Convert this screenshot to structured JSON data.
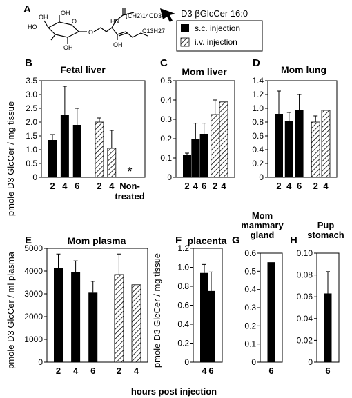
{
  "colors": {
    "scBar": "#000000",
    "ivHatch": "#000000",
    "frame": "#000000"
  },
  "header": {
    "panel_letter": "A",
    "compound_name": "D3 βGlcCer 16:0",
    "structure_labels": {
      "oh1": "OH",
      "ho": "HO",
      "oh2": "OH",
      "oh3": "OH",
      "nh": "HN",
      "o": "O",
      "chain": "(CH2)14CD3",
      "c13": "C13H27",
      "ring_o": "O"
    }
  },
  "legend": [
    {
      "key": "sc",
      "label": "s.c. injection",
      "style": "solid"
    },
    {
      "key": "iv",
      "label": "i.v. injection",
      "style": "hatched"
    }
  ],
  "axis_text": {
    "ylabel_top": "pmole D3 GlcCer / mg tissue",
    "ylabel_E": "pmole D3 GlcCer / ml plasma",
    "ylabel_F": "pmole D3 GlcCer / mg tissue",
    "xlabel_bottom": "hours post injection",
    "non_treated": "Non-\ntreated",
    "asterisk": "*"
  },
  "chart_data": [
    {
      "panel": "B",
      "title": "Fetal liver",
      "type": "bar",
      "ylim": [
        0,
        3.5
      ],
      "yticks": [
        "0",
        "0.5",
        "1.0",
        "1.5",
        "2.0",
        "2.5",
        "3.0",
        "3.5"
      ],
      "categories": [
        "2",
        "4",
        "6",
        "2",
        "4"
      ],
      "series": [
        {
          "name": "s.c. injection",
          "x": [
            "2",
            "4",
            "6"
          ],
          "values": [
            1.35,
            2.25,
            1.9
          ],
          "errors": [
            0.2,
            1.05,
            0.6
          ]
        },
        {
          "name": "i.v. injection",
          "x": [
            "2",
            "4"
          ],
          "values": [
            2.0,
            1.05
          ],
          "errors": [
            0.15,
            0.65
          ]
        }
      ],
      "extra_category": "Non-treated",
      "extra_marker": "*"
    },
    {
      "panel": "C",
      "title": "Mom liver",
      "type": "bar",
      "ylim": [
        0,
        0.5
      ],
      "yticks": [
        "0",
        "0.1",
        "0.2",
        "0.3",
        "0.4",
        "0.5"
      ],
      "categories": [
        "2",
        "4",
        "6",
        "2",
        "4"
      ],
      "series": [
        {
          "name": "s.c. injection",
          "x": [
            "2",
            "4",
            "6"
          ],
          "values": [
            0.115,
            0.2,
            0.225
          ],
          "errors": [
            0.01,
            0.08,
            0.055
          ]
        },
        {
          "name": "i.v. injection",
          "x": [
            "2",
            "4"
          ],
          "values": [
            0.325,
            0.39
          ],
          "errors": [
            0.075,
            0
          ]
        }
      ]
    },
    {
      "panel": "D",
      "title": "Mom lung",
      "type": "bar",
      "ylim": [
        0,
        1.4
      ],
      "yticks": [
        "0",
        "0.2",
        "0.4",
        "0.6",
        "0.8",
        "1.0",
        "1.2",
        "1.4"
      ],
      "categories": [
        "2",
        "4",
        "6",
        "2",
        "4"
      ],
      "series": [
        {
          "name": "s.c. injection",
          "x": [
            "2",
            "4",
            "6"
          ],
          "values": [
            0.92,
            0.82,
            0.98
          ],
          "errors": [
            0.33,
            0.12,
            0.22
          ]
        },
        {
          "name": "i.v. injection",
          "x": [
            "2",
            "4"
          ],
          "values": [
            0.8,
            0.97
          ],
          "errors": [
            0.09,
            0
          ]
        }
      ]
    },
    {
      "panel": "E",
      "title": "Mom plasma",
      "type": "bar",
      "ylim": [
        0,
        5000
      ],
      "yticks": [
        "0",
        "1000",
        "2000",
        "3000",
        "4000",
        "5000"
      ],
      "categories": [
        "2",
        "4",
        "6",
        "2",
        "4"
      ],
      "series": [
        {
          "name": "s.c. injection",
          "x": [
            "2",
            "4",
            "6"
          ],
          "values": [
            4150,
            3950,
            3050
          ],
          "errors": [
            600,
            500,
            500
          ]
        },
        {
          "name": "i.v. injection",
          "x": [
            "2",
            "4"
          ],
          "values": [
            3850,
            3400
          ],
          "errors": [
            900,
            0
          ]
        }
      ]
    },
    {
      "panel": "F",
      "title": "placenta",
      "type": "bar",
      "ylim": [
        0,
        1.2
      ],
      "yticks": [
        "0",
        "0.2",
        "0.4",
        "0.6",
        "0.8",
        "1.0",
        "1.2"
      ],
      "categories": [
        "4",
        "6"
      ],
      "series": [
        {
          "name": "s.c. injection",
          "x": [
            "4",
            "6"
          ],
          "values": [
            0.94,
            0.75
          ],
          "errors": [
            0.09,
            0.2
          ]
        }
      ]
    },
    {
      "panel": "G",
      "title": "Mom\nmammary\ngland",
      "type": "bar",
      "ylim": [
        0,
        0.6
      ],
      "yticks": [
        "0",
        "0.1",
        "0.2",
        "0.3",
        "0.4",
        "0.5",
        "0.6"
      ],
      "categories": [
        "6"
      ],
      "series": [
        {
          "name": "s.c. injection",
          "x": [
            "6"
          ],
          "values": [
            0.55
          ],
          "errors": [
            0
          ]
        }
      ]
    },
    {
      "panel": "H",
      "title": "Pup\nstomach",
      "type": "bar",
      "ylim": [
        0,
        0.1
      ],
      "yticks": [
        "0",
        "0.02",
        "0.04",
        "0.06",
        "0.08",
        "0.10"
      ],
      "categories": [
        "6"
      ],
      "series": [
        {
          "name": "s.c. injection",
          "x": [
            "6"
          ],
          "values": [
            0.063
          ],
          "errors": [
            0.02
          ]
        }
      ]
    }
  ]
}
